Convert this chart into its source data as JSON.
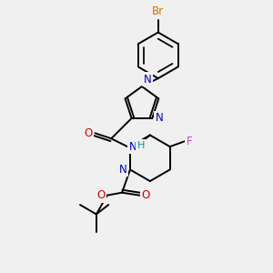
{
  "bg_color": "#f0f0f0",
  "bond_color": "#000000",
  "bond_width": 1.4,
  "atoms": {
    "Br": {
      "color": "#cc7700"
    },
    "N": {
      "color": "#0000cc"
    },
    "O": {
      "color": "#cc0000"
    },
    "F": {
      "color": "#cc44cc"
    },
    "H": {
      "color": "#008888"
    }
  }
}
